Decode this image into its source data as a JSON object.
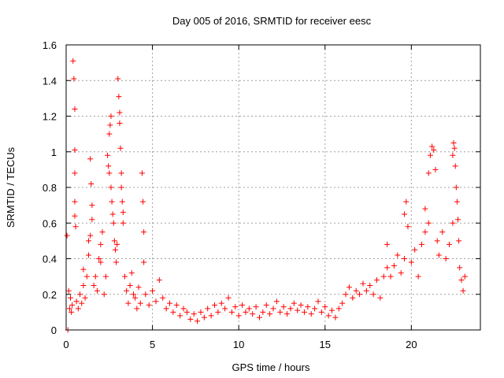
{
  "chart_data": {
    "type": "scatter",
    "title": "Day 005 of 2016, SRMTID for receiver eesc",
    "xlabel": "GPS time / hours",
    "ylabel": "SRMTID / TECUs",
    "xlim": [
      0,
      24
    ],
    "ylim": [
      0,
      1.6
    ],
    "xticks": [
      0,
      5,
      10,
      15,
      20
    ],
    "xtick_labels": [
      "0",
      "5",
      "10",
      "15",
      "20"
    ],
    "yticks": [
      0,
      0.2,
      0.4,
      0.6,
      0.8,
      1,
      1.2,
      1.4,
      1.6
    ],
    "ytick_labels": [
      "0",
      "0.2",
      "0.4",
      "0.6",
      "0.8",
      "1",
      "1.2",
      "1.4",
      "1.6"
    ],
    "grid": true,
    "marker": "+",
    "color": "#ff0000",
    "series": [
      {
        "name": "SRMTID",
        "points": [
          [
            0.05,
            0.53
          ],
          [
            0.1,
            0.0
          ],
          [
            0.15,
            0.22
          ],
          [
            0.2,
            0.12
          ],
          [
            0.25,
            0.18
          ],
          [
            0.3,
            0.1
          ],
          [
            0.35,
            0.14
          ],
          [
            0.4,
            1.51
          ],
          [
            0.45,
            1.41
          ],
          [
            0.5,
            1.24
          ],
          [
            0.5,
            1.01
          ],
          [
            0.5,
            0.88
          ],
          [
            0.5,
            0.72
          ],
          [
            0.5,
            0.64
          ],
          [
            0.55,
            0.58
          ],
          [
            0.6,
            0.16
          ],
          [
            0.7,
            0.12
          ],
          [
            0.8,
            0.2
          ],
          [
            0.9,
            0.15
          ],
          [
            1.0,
            0.25
          ],
          [
            1.0,
            0.34
          ],
          [
            1.1,
            0.18
          ],
          [
            1.2,
            0.3
          ],
          [
            1.3,
            0.42
          ],
          [
            1.3,
            0.5
          ],
          [
            1.4,
            0.53
          ],
          [
            1.4,
            0.96
          ],
          [
            1.45,
            0.82
          ],
          [
            1.5,
            0.7
          ],
          [
            1.5,
            0.62
          ],
          [
            1.6,
            0.25
          ],
          [
            1.7,
            0.3
          ],
          [
            1.8,
            0.22
          ],
          [
            1.9,
            0.4
          ],
          [
            2.0,
            0.38
          ],
          [
            2.0,
            0.48
          ],
          [
            2.1,
            0.55
          ],
          [
            2.2,
            0.2
          ],
          [
            2.3,
            0.3
          ],
          [
            2.4,
            0.98
          ],
          [
            2.45,
            0.92
          ],
          [
            2.5,
            0.88
          ],
          [
            2.5,
            1.1
          ],
          [
            2.55,
            1.15
          ],
          [
            2.6,
            1.2
          ],
          [
            2.6,
            0.8
          ],
          [
            2.65,
            0.72
          ],
          [
            2.7,
            0.65
          ],
          [
            2.75,
            0.6
          ],
          [
            2.8,
            0.5
          ],
          [
            2.85,
            0.45
          ],
          [
            2.9,
            0.38
          ],
          [
            2.95,
            0.48
          ],
          [
            3.0,
            1.41
          ],
          [
            3.05,
            1.31
          ],
          [
            3.1,
            1.22
          ],
          [
            3.1,
            1.16
          ],
          [
            3.15,
            1.02
          ],
          [
            3.2,
            0.88
          ],
          [
            3.2,
            0.8
          ],
          [
            3.25,
            0.72
          ],
          [
            3.3,
            0.66
          ],
          [
            3.3,
            0.6
          ],
          [
            3.4,
            0.3
          ],
          [
            3.5,
            0.22
          ],
          [
            3.6,
            0.15
          ],
          [
            3.7,
            0.25
          ],
          [
            3.8,
            0.32
          ],
          [
            3.9,
            0.2
          ],
          [
            4.0,
            0.18
          ],
          [
            4.1,
            0.12
          ],
          [
            4.2,
            0.24
          ],
          [
            4.3,
            0.15
          ],
          [
            4.4,
            0.88
          ],
          [
            4.45,
            0.72
          ],
          [
            4.5,
            0.55
          ],
          [
            4.5,
            0.38
          ],
          [
            4.6,
            0.2
          ],
          [
            4.8,
            0.14
          ],
          [
            5.0,
            0.22
          ],
          [
            5.2,
            0.16
          ],
          [
            5.4,
            0.28
          ],
          [
            5.6,
            0.18
          ],
          [
            5.8,
            0.12
          ],
          [
            6.0,
            0.15
          ],
          [
            6.2,
            0.1
          ],
          [
            6.4,
            0.14
          ],
          [
            6.6,
            0.08
          ],
          [
            6.8,
            0.12
          ],
          [
            7.0,
            0.1
          ],
          [
            7.2,
            0.06
          ],
          [
            7.4,
            0.09
          ],
          [
            7.6,
            0.05
          ],
          [
            7.8,
            0.1
          ],
          [
            8.0,
            0.07
          ],
          [
            8.2,
            0.12
          ],
          [
            8.4,
            0.08
          ],
          [
            8.6,
            0.14
          ],
          [
            8.8,
            0.1
          ],
          [
            9.0,
            0.15
          ],
          [
            9.2,
            0.12
          ],
          [
            9.4,
            0.18
          ],
          [
            9.6,
            0.1
          ],
          [
            9.8,
            0.13
          ],
          [
            10.0,
            0.08
          ],
          [
            10.2,
            0.14
          ],
          [
            10.4,
            0.1
          ],
          [
            10.6,
            0.12
          ],
          [
            10.8,
            0.09
          ],
          [
            11.0,
            0.13
          ],
          [
            11.2,
            0.07
          ],
          [
            11.4,
            0.1
          ],
          [
            11.6,
            0.14
          ],
          [
            11.8,
            0.09
          ],
          [
            12.0,
            0.12
          ],
          [
            12.2,
            0.16
          ],
          [
            12.4,
            0.1
          ],
          [
            12.6,
            0.13
          ],
          [
            12.8,
            0.09
          ],
          [
            13.0,
            0.12
          ],
          [
            13.2,
            0.15
          ],
          [
            13.4,
            0.11
          ],
          [
            13.6,
            0.14
          ],
          [
            13.8,
            0.1
          ],
          [
            14.0,
            0.13
          ],
          [
            14.2,
            0.09
          ],
          [
            14.4,
            0.12
          ],
          [
            14.6,
            0.16
          ],
          [
            14.8,
            0.1
          ],
          [
            15.0,
            0.13
          ],
          [
            15.2,
            0.08
          ],
          [
            15.4,
            0.11
          ],
          [
            15.6,
            0.07
          ],
          [
            15.8,
            0.12
          ],
          [
            16.0,
            0.15
          ],
          [
            16.2,
            0.2
          ],
          [
            16.4,
            0.24
          ],
          [
            16.6,
            0.18
          ],
          [
            16.8,
            0.22
          ],
          [
            17.0,
            0.2
          ],
          [
            17.2,
            0.26
          ],
          [
            17.4,
            0.22
          ],
          [
            17.6,
            0.25
          ],
          [
            17.8,
            0.2
          ],
          [
            18.0,
            0.28
          ],
          [
            18.2,
            0.18
          ],
          [
            18.4,
            0.3
          ],
          [
            18.6,
            0.35
          ],
          [
            18.6,
            0.48
          ],
          [
            18.8,
            0.3
          ],
          [
            19.0,
            0.36
          ],
          [
            19.2,
            0.42
          ],
          [
            19.4,
            0.32
          ],
          [
            19.6,
            0.4
          ],
          [
            19.6,
            0.65
          ],
          [
            19.7,
            0.72
          ],
          [
            19.8,
            0.58
          ],
          [
            20.0,
            0.38
          ],
          [
            20.2,
            0.45
          ],
          [
            20.4,
            0.3
          ],
          [
            20.6,
            0.48
          ],
          [
            20.8,
            0.55
          ],
          [
            20.8,
            0.68
          ],
          [
            21.0,
            0.6
          ],
          [
            21.0,
            0.88
          ],
          [
            21.1,
            0.98
          ],
          [
            21.2,
            1.03
          ],
          [
            21.3,
            1.01
          ],
          [
            21.4,
            0.9
          ],
          [
            21.5,
            0.5
          ],
          [
            21.6,
            0.42
          ],
          [
            21.8,
            0.55
          ],
          [
            22.0,
            0.4
          ],
          [
            22.2,
            0.48
          ],
          [
            22.4,
            0.6
          ],
          [
            22.4,
            0.98
          ],
          [
            22.45,
            1.05
          ],
          [
            22.5,
            1.02
          ],
          [
            22.55,
            0.92
          ],
          [
            22.6,
            0.8
          ],
          [
            22.65,
            0.72
          ],
          [
            22.7,
            0.62
          ],
          [
            22.75,
            0.5
          ],
          [
            22.8,
            0.35
          ],
          [
            22.9,
            0.28
          ],
          [
            23.0,
            0.22
          ],
          [
            23.1,
            0.3
          ]
        ]
      }
    ]
  }
}
